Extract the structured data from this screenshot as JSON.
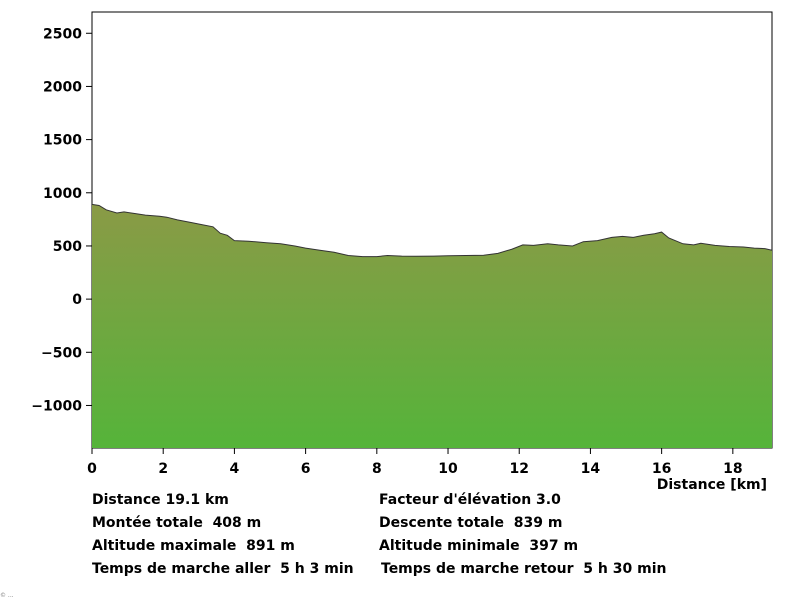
{
  "chart_data": {
    "type": "area",
    "xlabel": "Distance [km]",
    "ylabel": "",
    "xlim": [
      0,
      19.1
    ],
    "ylim": [
      -1400,
      2700
    ],
    "x_ticks": [
      0,
      2,
      4,
      6,
      8,
      10,
      12,
      14,
      16,
      18
    ],
    "y_ticks": [
      2500,
      2000,
      1500,
      1000,
      500,
      0,
      -500,
      -1000
    ],
    "fill_top_color": "#8a9a46",
    "fill_bottom_color": "#55b43a",
    "line_color": "#333333",
    "series": [
      {
        "x": [
          0,
          0.2,
          0.4,
          0.7,
          0.9,
          1.2,
          1.5,
          1.9,
          2.1,
          2.4,
          2.8,
          3.1,
          3.4,
          3.6,
          3.8,
          4.0,
          4.4,
          4.9,
          5.3,
          5.7,
          6.0,
          6.4,
          6.8,
          7.2,
          7.6,
          8.0,
          8.3,
          8.7,
          9.1,
          9.6,
          10.0,
          10.5,
          11.0,
          11.4,
          11.8,
          12.1,
          12.4,
          12.8,
          13.1,
          13.5,
          13.8,
          14.2,
          14.6,
          14.9,
          15.2,
          15.5,
          15.8,
          16.0,
          16.2,
          16.6,
          16.9,
          17.1,
          17.5,
          17.9,
          18.3,
          18.6,
          18.9,
          19.1
        ],
        "y": [
          891,
          880,
          840,
          810,
          820,
          805,
          790,
          780,
          770,
          745,
          720,
          700,
          680,
          620,
          600,
          550,
          545,
          530,
          520,
          500,
          480,
          460,
          440,
          410,
          400,
          400,
          410,
          405,
          403,
          405,
          408,
          410,
          412,
          430,
          470,
          510,
          505,
          520,
          510,
          500,
          540,
          550,
          580,
          590,
          580,
          600,
          615,
          630,
          575,
          520,
          510,
          525,
          505,
          495,
          490,
          480,
          475,
          460
        ]
      }
    ]
  },
  "stats": {
    "distance": "Distance 19.1 km",
    "elevation_factor": "Facteur d'élévation 3.0",
    "total_ascent": "Montée totale  408 m",
    "total_descent": "Descente totale  839 m",
    "max_altitude": "Altitude maximale  891 m",
    "min_altitude": "Altitude minimale  397 m",
    "time_outbound": "Temps de marche aller  5 h 3 min",
    "time_return": "Temps de marche retour  5 h 30 min"
  },
  "corner_text": "© ..."
}
